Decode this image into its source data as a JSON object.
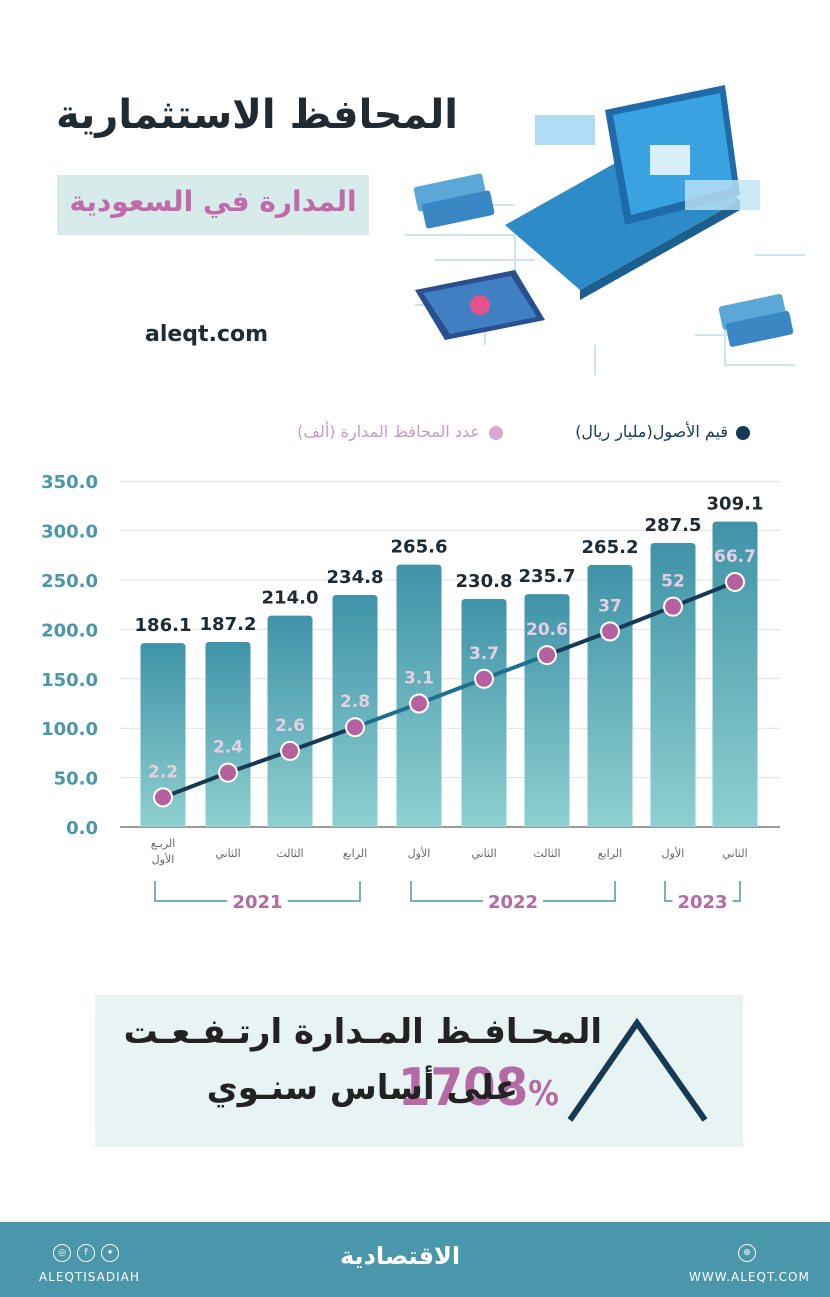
{
  "header": {
    "title": "المحافظ الاستثمارية",
    "subtitle": "المدارة في السعودية",
    "site": "aleqt.com"
  },
  "legend": {
    "assets_label": "قيم الأصول(مليار ريال)",
    "portfolios_label": "عدد المحافظ المدارة (ألف)"
  },
  "colors": {
    "bar": "#3f93a8",
    "bar_fade": "#8fd0d0",
    "line": "#163a53",
    "dot": "#b6619f",
    "dot_label": "#e6cfe3",
    "purple": "#b66aa5"
  },
  "chart_data": {
    "type": "bar",
    "categories": [
      "الربـع الأول",
      "الثاني",
      "الثالث",
      "الرابع",
      "الأول",
      "الثاني",
      "الثالث",
      "الرابع",
      "الأول",
      "الثاني"
    ],
    "years": [
      {
        "label": "2021",
        "from": 0,
        "to": 3
      },
      {
        "label": "2022",
        "from": 4,
        "to": 7
      },
      {
        "label": "2023",
        "from": 8,
        "to": 9
      }
    ],
    "series": [
      {
        "name": "قيم الأصول(مليار ريال)",
        "type": "bar",
        "values": [
          186.1,
          187.2,
          214.0,
          234.8,
          265.6,
          230.8,
          235.7,
          265.2,
          287.5,
          309.1
        ],
        "labels": [
          "186.1",
          "187.2",
          "214.0",
          "234.8",
          "265.6",
          "230.8",
          "235.7",
          "265.2",
          "287.5",
          "309.1"
        ]
      },
      {
        "name": "عدد المحافظ المدارة (ألف)",
        "type": "line",
        "values": [
          2.2,
          2.4,
          2.6,
          2.8,
          3.1,
          3.7,
          20.6,
          37,
          52,
          66.7
        ],
        "labels": [
          "2.2",
          "2.4",
          "2.6",
          "2.8",
          "3.1",
          "3.7",
          "20.6",
          "37",
          "52",
          "66.7"
        ],
        "plot_positions": [
          30,
          55,
          77,
          101,
          125,
          150,
          174,
          198,
          223,
          248
        ]
      }
    ],
    "yticks": [
      "0.0",
      "50.0",
      "100.0",
      "150.0",
      "200.0",
      "250.0",
      "300.0",
      "350.0"
    ],
    "ylim": [
      0,
      350
    ]
  },
  "callout": {
    "line1": "المحـافـظ المـدارة ارتـفـعـت",
    "number": "1708",
    "percent": "%",
    "line2": "على أساس سنـوي"
  },
  "footer": {
    "brand": "الاقتصادية",
    "handle": "ALEQTISADIAH",
    "website": "WWW.ALEQT.COM",
    "icons": [
      "instagram-icon",
      "facebook-icon",
      "twitter-icon",
      "globe-icon"
    ]
  }
}
